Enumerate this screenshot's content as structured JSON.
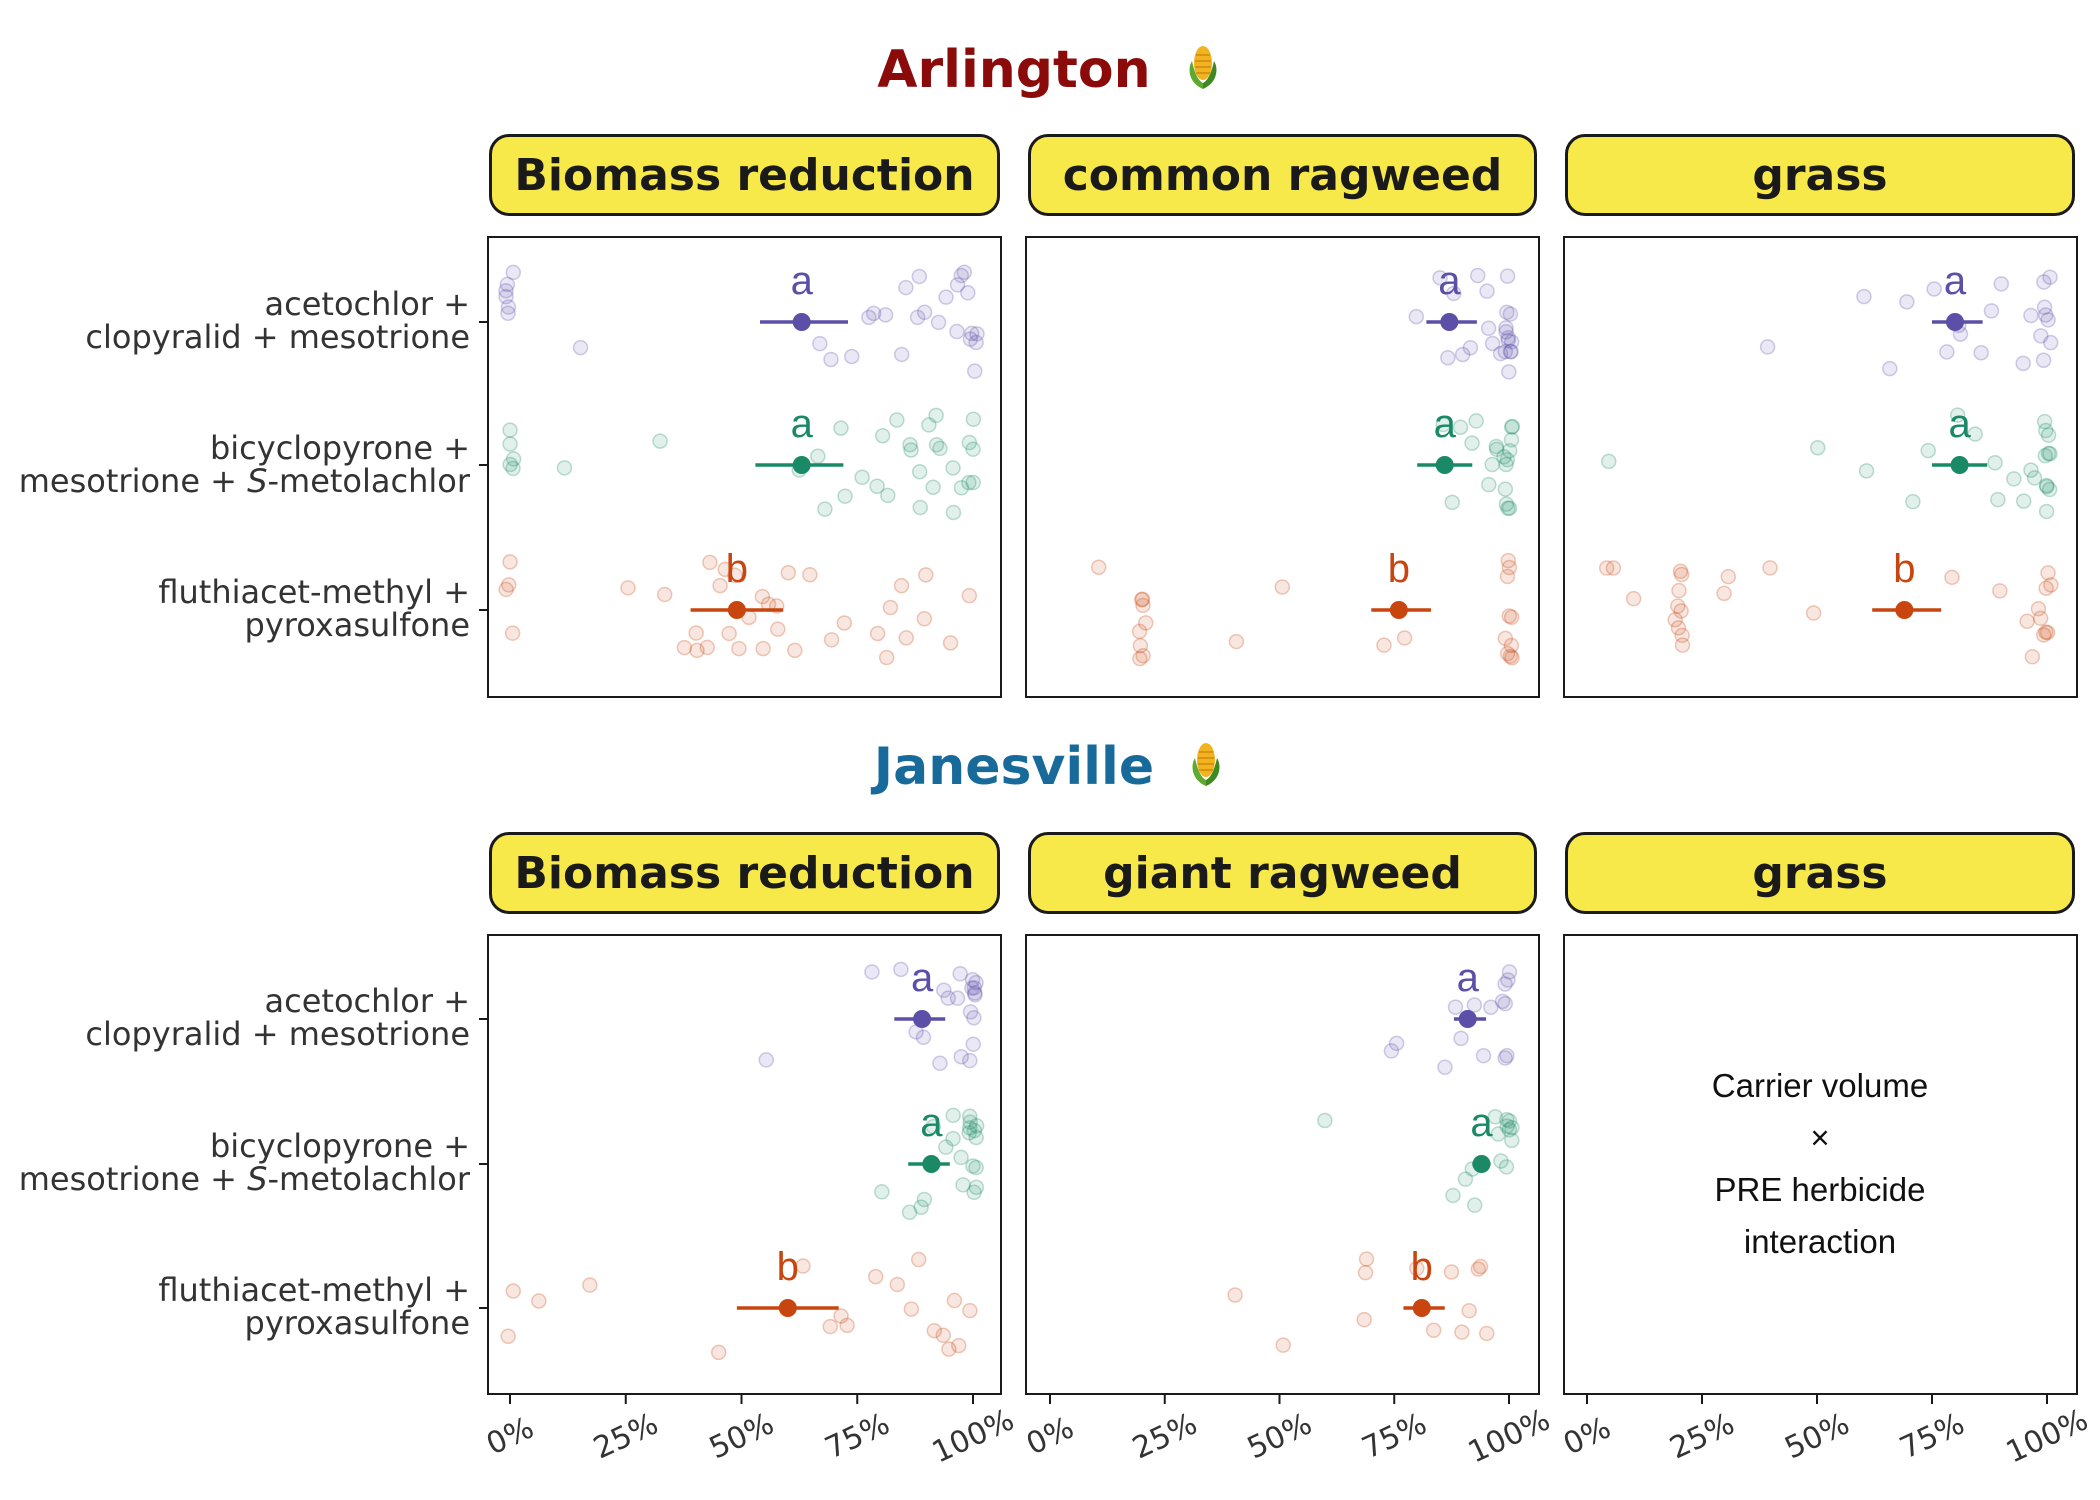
{
  "colors": {
    "acetochlor": "#5B4FA8",
    "bicyclopyrone": "#1A8A66",
    "fluthiacet": "#C9450F",
    "arlington": "#8B0A0A",
    "janesville": "#176A9A",
    "strip": "#F8E94A"
  },
  "treatments": [
    {
      "line1": "acetochlor +",
      "line2": "clopyralid + mesotrione"
    },
    {
      "line1": "bicyclopyrone +",
      "line2_pre": "mesotrione + ",
      "line2_italic": "S",
      "line2_post": "-metolachlor"
    },
    {
      "line1": "fluthiacet-methyl +",
      "line2": "pyroxasulfone"
    }
  ],
  "interaction_note": [
    "Carrier volume",
    "×",
    "PRE herbicide",
    "interaction"
  ],
  "chart_data": [
    {
      "site": "Arlington",
      "site_icon": "corn-icon",
      "panel": "Biomass reduction",
      "type": "scatter",
      "x_ticks": [
        "0%",
        "25%",
        "50%",
        "75%",
        "100%"
      ],
      "xlim": [
        0,
        100
      ],
      "means": [
        {
          "treatment": 0,
          "mean": 63,
          "ci": [
            54,
            73
          ],
          "letter": "a"
        },
        {
          "treatment": 1,
          "mean": 63,
          "ci": [
            53,
            72
          ],
          "letter": "a"
        },
        {
          "treatment": 2,
          "mean": 49,
          "ci": [
            39,
            59
          ],
          "letter": "b"
        }
      ],
      "points": [
        [
          0,
          [
            0,
            0,
            0,
            0,
            0,
            0,
            15,
            67,
            70,
            73,
            77,
            79,
            81,
            84,
            86,
            88,
            88,
            89,
            93,
            95,
            96,
            97,
            97,
            98,
            99,
            100,
            100,
            100,
            100,
            100
          ]
        ],
        [
          1,
          [
            0,
            0,
            0,
            0,
            0,
            12,
            32,
            62,
            66,
            68,
            71,
            73,
            76,
            79,
            81,
            82,
            84,
            86,
            87,
            88,
            89,
            90,
            91,
            92,
            92,
            93,
            95,
            96,
            98,
            99,
            100,
            100,
            100,
            100
          ]
        ],
        [
          2,
          [
            0,
            0,
            0,
            0,
            26,
            33,
            38,
            40,
            41,
            42,
            44,
            45,
            46,
            47,
            48,
            50,
            51,
            54,
            55,
            56,
            57,
            58,
            60,
            62,
            65,
            70,
            72,
            80,
            81,
            82,
            84,
            86,
            89,
            90,
            96,
            100
          ]
        ]
      ]
    },
    {
      "site": "Arlington",
      "panel": "common ragweed",
      "type": "scatter",
      "x_ticks": [
        "0%",
        "25%",
        "50%",
        "75%",
        "100%"
      ],
      "xlim": [
        0,
        100
      ],
      "means": [
        {
          "treatment": 0,
          "mean": 87,
          "ci": [
            82,
            93
          ],
          "letter": "a"
        },
        {
          "treatment": 1,
          "mean": 86,
          "ci": [
            80,
            92
          ],
          "letter": "a"
        },
        {
          "treatment": 2,
          "mean": 76,
          "ci": [
            70,
            83
          ],
          "letter": "b"
        }
      ],
      "points": [
        [
          0,
          [
            80,
            85,
            86,
            88,
            90,
            92,
            93,
            95,
            96,
            97,
            98,
            99,
            100,
            100,
            100,
            100,
            100,
            100,
            100,
            100,
            100,
            100,
            100
          ]
        ],
        [
          1,
          [
            85,
            88,
            90,
            92,
            93,
            95,
            96,
            97,
            98,
            99,
            100,
            100,
            100,
            100,
            100,
            100,
            100,
            100,
            100,
            100
          ]
        ],
        [
          2,
          [
            10,
            20,
            20,
            20,
            20,
            20,
            20,
            20,
            20,
            40,
            50,
            72,
            78,
            100,
            100,
            100,
            100,
            100,
            100,
            100,
            100,
            100,
            100
          ]
        ]
      ]
    },
    {
      "site": "Arlington",
      "panel": "grass",
      "type": "scatter",
      "x_ticks": [
        "0%",
        "25%",
        "50%",
        "75%",
        "100%"
      ],
      "xlim": [
        0,
        100
      ],
      "means": [
        {
          "treatment": 0,
          "mean": 80,
          "ci": [
            75,
            86
          ],
          "letter": "a"
        },
        {
          "treatment": 1,
          "mean": 81,
          "ci": [
            75,
            87
          ],
          "letter": "a"
        },
        {
          "treatment": 2,
          "mean": 69,
          "ci": [
            62,
            77
          ],
          "letter": "b"
        }
      ],
      "points": [
        [
          0,
          [
            40,
            60,
            65,
            70,
            75,
            78,
            80,
            82,
            85,
            88,
            90,
            95,
            97,
            98,
            99,
            100,
            100,
            100,
            100,
            100,
            100
          ]
        ],
        [
          1,
          [
            5,
            50,
            60,
            70,
            75,
            80,
            85,
            88,
            90,
            92,
            95,
            97,
            98,
            99,
            100,
            100,
            100,
            100,
            100,
            100,
            100,
            100,
            100
          ]
        ],
        [
          2,
          [
            5,
            5,
            10,
            20,
            20,
            20,
            20,
            20,
            20,
            20,
            20,
            20,
            30,
            30,
            40,
            50,
            80,
            90,
            95,
            97,
            98,
            99,
            100,
            100,
            100,
            100,
            100,
            100
          ]
        ]
      ]
    },
    {
      "site": "Janesville",
      "site_icon": "corn-icon",
      "panel": "Biomass reduction",
      "type": "scatter",
      "x_ticks": [
        "0%",
        "25%",
        "50%",
        "75%",
        "100%"
      ],
      "xlim": [
        0,
        100
      ],
      "means": [
        {
          "treatment": 0,
          "mean": 89,
          "ci": [
            83,
            94
          ],
          "letter": "a"
        },
        {
          "treatment": 1,
          "mean": 91,
          "ci": [
            86,
            95
          ],
          "letter": "a"
        },
        {
          "treatment": 2,
          "mean": 60,
          "ci": [
            49,
            71
          ],
          "letter": "b"
        }
      ],
      "points": [
        [
          0,
          [
            55,
            78,
            85,
            88,
            90,
            92,
            94,
            95,
            96,
            97,
            98,
            99,
            100,
            100,
            100,
            100,
            100,
            100,
            100,
            100,
            100
          ]
        ],
        [
          1,
          [
            81,
            86,
            88,
            90,
            92,
            94,
            95,
            96,
            97,
            98,
            99,
            100,
            100,
            100,
            100,
            100,
            100,
            100,
            100,
            100,
            100
          ]
        ],
        [
          2,
          [
            0,
            0,
            7,
            18,
            45,
            64,
            69,
            72,
            72,
            79,
            83,
            87,
            89,
            92,
            93,
            95,
            96,
            97,
            100
          ]
        ]
      ]
    },
    {
      "site": "Janesville",
      "panel": "giant ragweed",
      "type": "scatter",
      "x_ticks": [
        "0%",
        "25%",
        "50%",
        "75%",
        "100%"
      ],
      "xlim": [
        0,
        100
      ],
      "means": [
        {
          "treatment": 0,
          "mean": 91,
          "ci": [
            88,
            95
          ],
          "letter": "a"
        },
        {
          "treatment": 1,
          "mean": 94,
          "ci": [
            92,
            96
          ],
          "letter": "a"
        },
        {
          "treatment": 2,
          "mean": 81,
          "ci": [
            77,
            86
          ],
          "letter": "b"
        }
      ],
      "points": [
        [
          0,
          [
            75,
            75,
            86,
            88,
            90,
            92,
            94,
            96,
            98,
            99,
            100,
            100,
            100,
            100,
            100
          ]
        ],
        [
          1,
          [
            60,
            88,
            90,
            92,
            93,
            95,
            97,
            98,
            99,
            100,
            100,
            100,
            100,
            100,
            100,
            100
          ]
        ],
        [
          2,
          [
            40,
            50,
            69,
            69,
            69,
            80,
            84,
            88,
            90,
            92,
            93,
            94,
            95
          ]
        ]
      ]
    },
    {
      "site": "Janesville",
      "panel": "grass",
      "type": "scatter",
      "x_ticks": [
        "0%",
        "25%",
        "50%",
        "75%",
        "100%"
      ],
      "xlim": [
        0,
        100
      ],
      "means": [],
      "points": []
    }
  ]
}
